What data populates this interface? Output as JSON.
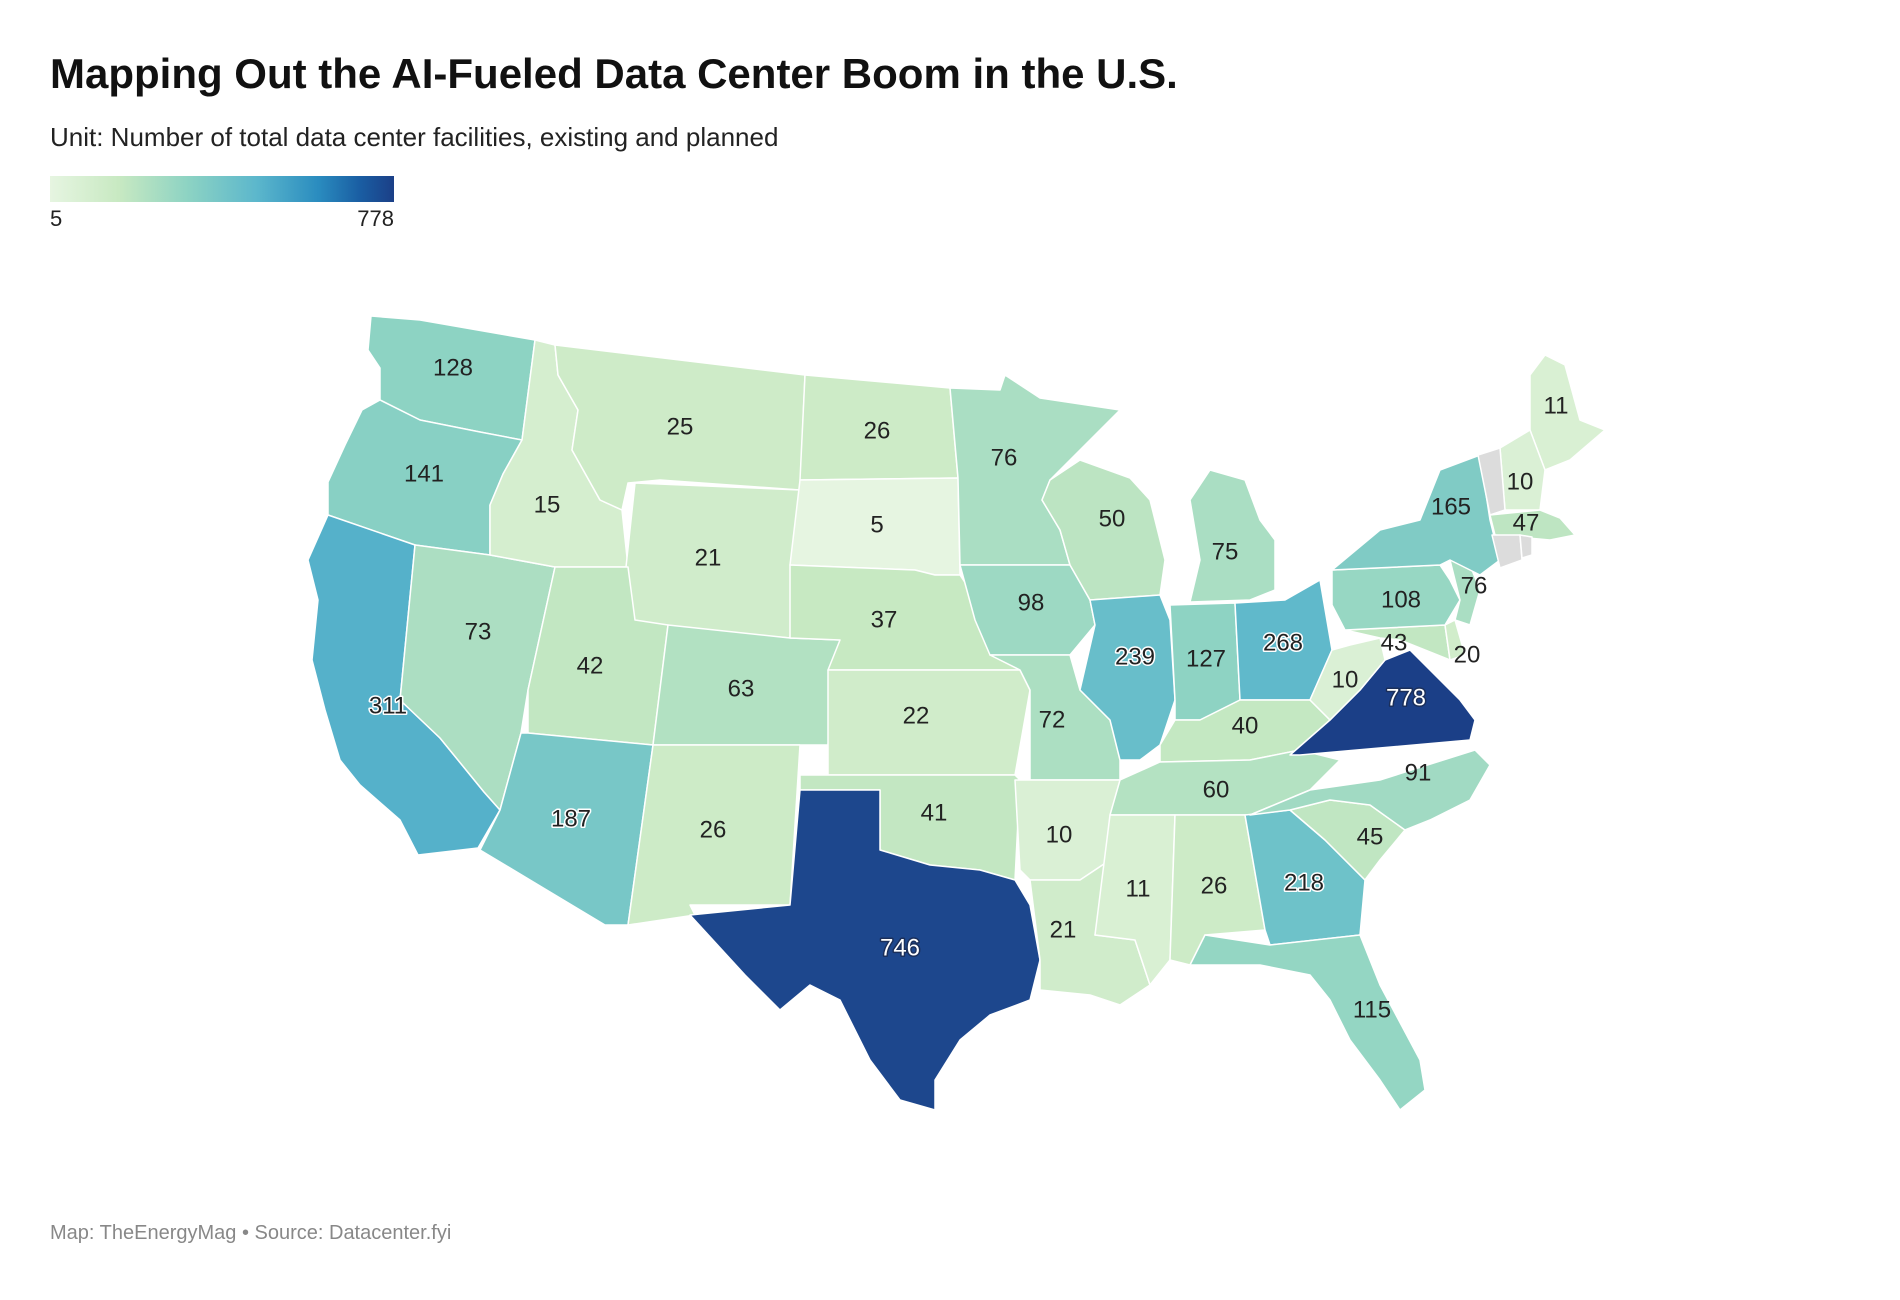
{
  "title": "Mapping Out the AI-Fueled Data Center Boom in the U.S.",
  "subtitle": "Unit: Number of total data center facilities, existing and planned",
  "legend": {
    "min_label": "5",
    "max_label": "778",
    "min": 5,
    "max": 778
  },
  "footer": "Map: TheEnergyMag • Source: Datacenter.fyi",
  "colors": {
    "no_data": "#dcdcdc",
    "border": "#ffffff",
    "scale": [
      "#e6f5e1",
      "#c8e9c2",
      "#8dd3c3",
      "#5cb7cc",
      "#2a8cbf",
      "#1b3f87"
    ]
  },
  "chart_data": {
    "type": "choropleth",
    "region": "United States (lower 48)",
    "states": [
      {
        "code": "WA",
        "value": 128
      },
      {
        "code": "OR",
        "value": 141
      },
      {
        "code": "CA",
        "value": 311
      },
      {
        "code": "NV",
        "value": 73
      },
      {
        "code": "ID",
        "value": 15
      },
      {
        "code": "MT",
        "value": 25
      },
      {
        "code": "WY",
        "value": 21
      },
      {
        "code": "UT",
        "value": 42
      },
      {
        "code": "AZ",
        "value": 187
      },
      {
        "code": "CO",
        "value": 63
      },
      {
        "code": "NM",
        "value": 26
      },
      {
        "code": "ND",
        "value": 26
      },
      {
        "code": "SD",
        "value": 5
      },
      {
        "code": "NE",
        "value": 37
      },
      {
        "code": "KS",
        "value": 22
      },
      {
        "code": "OK",
        "value": 41
      },
      {
        "code": "TX",
        "value": 746
      },
      {
        "code": "MN",
        "value": 76
      },
      {
        "code": "IA",
        "value": 98
      },
      {
        "code": "MO",
        "value": 72
      },
      {
        "code": "AR",
        "value": 10
      },
      {
        "code": "LA",
        "value": 21
      },
      {
        "code": "WI",
        "value": 50
      },
      {
        "code": "IL",
        "value": 239
      },
      {
        "code": "MI",
        "value": 75
      },
      {
        "code": "IN",
        "value": 127
      },
      {
        "code": "OH",
        "value": 268
      },
      {
        "code": "KY",
        "value": 40
      },
      {
        "code": "TN",
        "value": 60
      },
      {
        "code": "MS",
        "value": 11
      },
      {
        "code": "AL",
        "value": 26
      },
      {
        "code": "GA",
        "value": 218
      },
      {
        "code": "FL",
        "value": 115
      },
      {
        "code": "SC",
        "value": 45
      },
      {
        "code": "NC",
        "value": 91
      },
      {
        "code": "VA",
        "value": 778
      },
      {
        "code": "WV",
        "value": 10
      },
      {
        "code": "MD",
        "value": 43
      },
      {
        "code": "DE",
        "value": 20
      },
      {
        "code": "PA",
        "value": 108
      },
      {
        "code": "NJ",
        "value": 76
      },
      {
        "code": "NY",
        "value": 165
      },
      {
        "code": "ME",
        "value": 11
      },
      {
        "code": "NH",
        "value": 10
      },
      {
        "code": "MA",
        "value": 47
      },
      {
        "code": "VT",
        "value": null
      },
      {
        "code": "CT",
        "value": null
      },
      {
        "code": "RI",
        "value": null
      }
    ]
  }
}
